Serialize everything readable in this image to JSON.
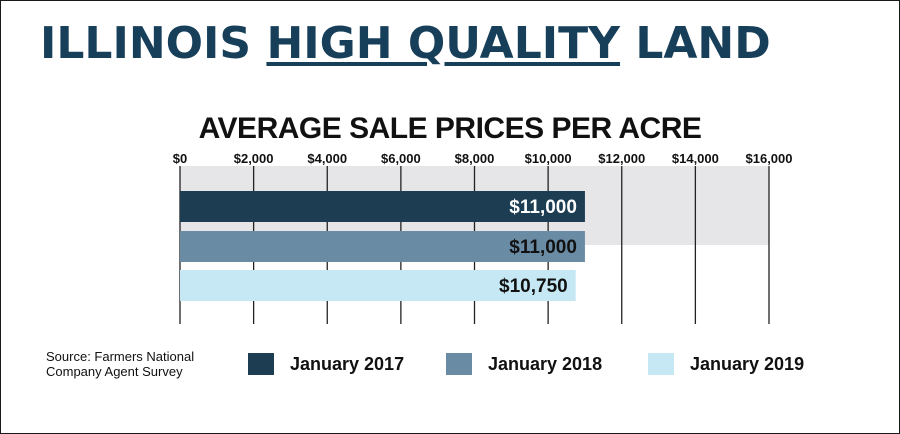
{
  "header": {
    "title_part1": "ILLINOIS ",
    "title_part2": "HIGH QUALITY",
    "title_part3": " LAND"
  },
  "chart_data": {
    "type": "bar",
    "orientation": "horizontal",
    "title": "AVERAGE SALE PRICES PER ACRE",
    "xlim": [
      0,
      16000
    ],
    "tick_values": [
      0,
      2000,
      4000,
      6000,
      8000,
      10000,
      12000,
      14000,
      16000
    ],
    "tick_labels": [
      "$0",
      "$2,000",
      "$4,000",
      "$6,000",
      "$8,000",
      "$10,000",
      "$12,000",
      "$14,000",
      "$16,000"
    ],
    "grid": true,
    "series": [
      {
        "name": "January 2017",
        "value": 11000,
        "label": "$11,000",
        "color": "#1c3d52",
        "label_color": "#ffffff"
      },
      {
        "name": "January 2018",
        "value": 11000,
        "label": "$11,000",
        "color": "#6a8ba4",
        "label_color": "#111111"
      },
      {
        "name": "January 2019",
        "value": 10750,
        "label": "$10,750",
        "color": "#c6e8f4",
        "label_color": "#111111"
      }
    ],
    "legend_position": "bottom"
  },
  "source": {
    "line1": "Source: Farmers National",
    "line2": "Company Agent Survey"
  }
}
